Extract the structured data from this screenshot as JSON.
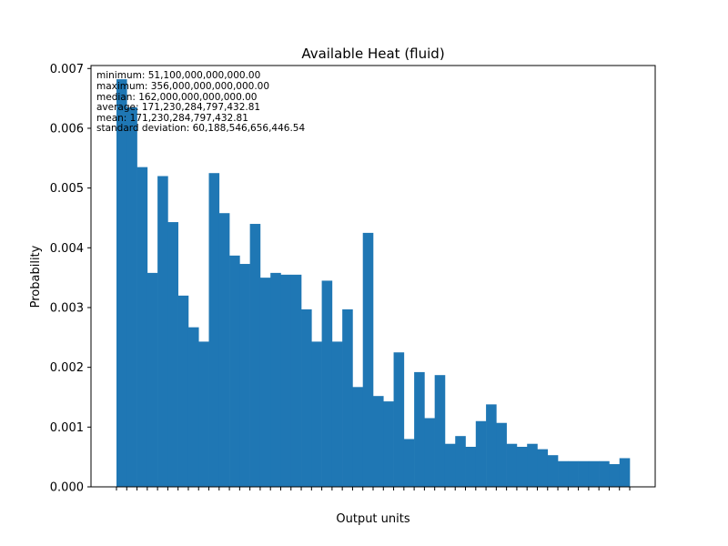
{
  "chart_data": {
    "type": "bar",
    "title": "Available Heat (fluid)",
    "xlabel": "Output units",
    "ylabel": "Probability",
    "ylim": [
      0,
      0.00705
    ],
    "yticks": [
      "0.000",
      "0.001",
      "0.002",
      "0.003",
      "0.004",
      "0.005",
      "0.006",
      "0.007"
    ],
    "bar_color": "#1f77b4",
    "grid": false,
    "values": [
      0.00682,
      0.00635,
      0.00535,
      0.00358,
      0.0052,
      0.00443,
      0.0032,
      0.00267,
      0.00243,
      0.00525,
      0.00458,
      0.00387,
      0.00373,
      0.0044,
      0.0035,
      0.00358,
      0.00355,
      0.00355,
      0.00297,
      0.00243,
      0.00345,
      0.00243,
      0.00297,
      0.00167,
      0.00425,
      0.00152,
      0.00143,
      0.00225,
      0.0008,
      0.00192,
      0.00115,
      0.00187,
      0.00072,
      0.00085,
      0.00067,
      0.0011,
      0.00138,
      0.00107,
      0.00072,
      0.00067,
      0.00072,
      0.00063,
      0.00053,
      0.00043,
      0.00043,
      0.00043,
      0.00043,
      0.00043,
      0.00038,
      0.00048
    ],
    "stats": [
      "minimum: 51,100,000,000,000.00",
      "maximum: 356,000,000,000,000.00",
      "median: 162,000,000,000,000.00",
      "average: 171,230,284,797,432.81",
      "mean: 171,230,284,797,432.81",
      "standard deviation: 60,188,546,656,446.54"
    ]
  }
}
